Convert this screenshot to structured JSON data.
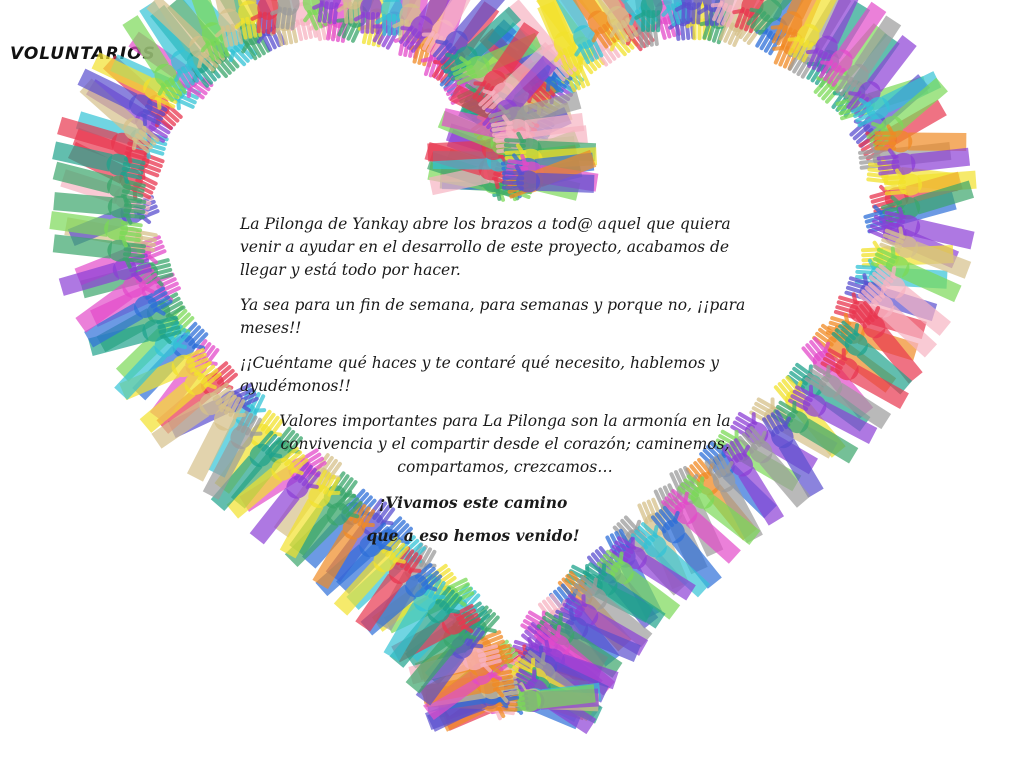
{
  "title": "VOLUNTARIOS",
  "artwork": {
    "subject": "heart-of-hands-icon",
    "palette": [
      "#e8364f",
      "#3aa56b",
      "#8c3fd6",
      "#f2e12c",
      "#33c3d6",
      "#f08a24",
      "#e34ac9",
      "#2e6fd8",
      "#7bd957",
      "#9b9b9b",
      "#f7b3c2",
      "#5a4fcf",
      "#d6c08a",
      "#1fa38c"
    ]
  },
  "message": {
    "paragraphs": [
      "La Pilonga de Yankay abre los brazos a tod@ aquel que quiera venir a ayudar en el desarrollo de este proyecto, acabamos de llegar y está todo por hacer.",
      "Ya sea para un fin de semana, para semanas y porque no, ¡¡para meses!!",
      "¡¡Cuéntame qué haces y te contaré qué necesito, hablemos y ayudémonos!!",
      "Valores importantes para La Pilonga son la armonía en la convivencia y el compartir desde el corazón; caminemos, compartamos, crezcamos…"
    ],
    "closing": [
      "¡Vivamos este camino",
      "que a eso hemos venido!"
    ]
  }
}
